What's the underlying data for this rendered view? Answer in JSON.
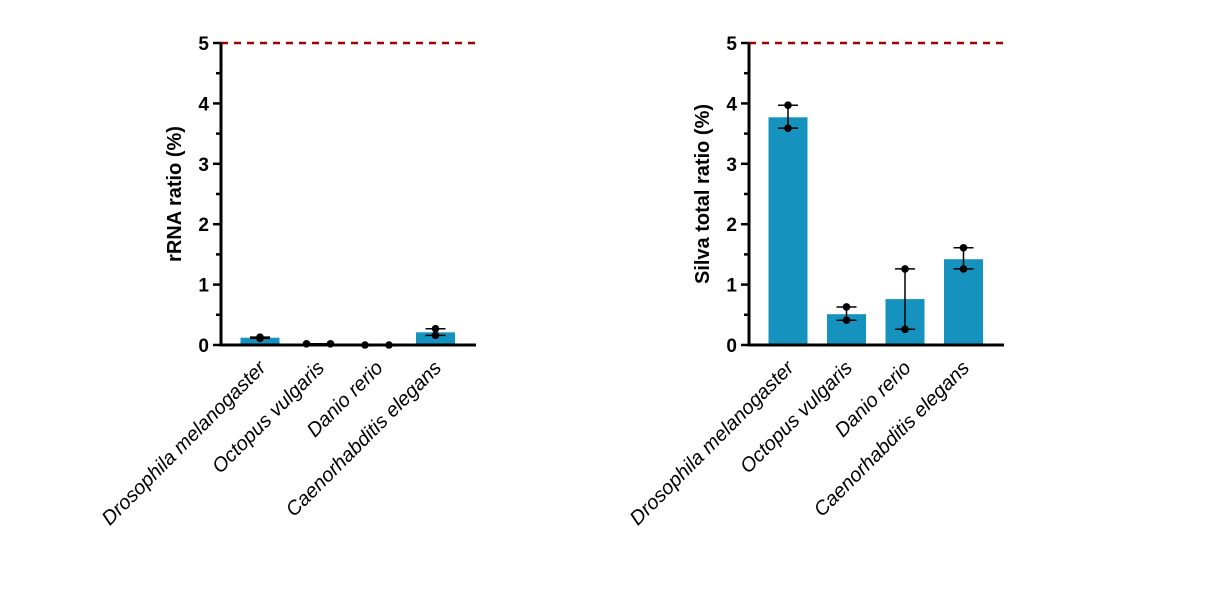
{
  "chart_data": [
    {
      "type": "bar",
      "ylabel": "rRNA ratio (%)",
      "xlabel": "",
      "ylim": [
        0,
        5
      ],
      "yticks": [
        0,
        1,
        2,
        3,
        4,
        5
      ],
      "categories": [
        "Drosophila melanogaster",
        "Octopus vulgaris",
        "Danio rerio",
        "Caenorhabditis elegans"
      ],
      "values": [
        0.12,
        0.02,
        0.0,
        0.21
      ],
      "points": [
        [
          0.11,
          0.13
        ],
        [
          0.02,
          0.02
        ],
        [
          0.0,
          0.0
        ],
        [
          0.27,
          0.16
        ]
      ],
      "reference_line": 5,
      "bar_color": "#1592bd",
      "reference_color": "#a50000",
      "grid": false
    },
    {
      "type": "bar",
      "ylabel": "Silva total ratio (%)",
      "xlabel": "",
      "ylim": [
        0,
        5
      ],
      "yticks": [
        0,
        1,
        2,
        3,
        4,
        5
      ],
      "categories": [
        "Drosophila melanogaster",
        "Octopus vulgaris",
        "Danio rerio",
        "Caenorhabditis elegans"
      ],
      "values": [
        3.77,
        0.51,
        0.76,
        1.42
      ],
      "points": [
        [
          3.97,
          3.59
        ],
        [
          0.63,
          0.41
        ],
        [
          1.26,
          0.26
        ],
        [
          1.61,
          1.26
        ]
      ],
      "reference_line": 5,
      "bar_color": "#1592bd",
      "reference_color": "#a50000",
      "grid": false
    }
  ]
}
